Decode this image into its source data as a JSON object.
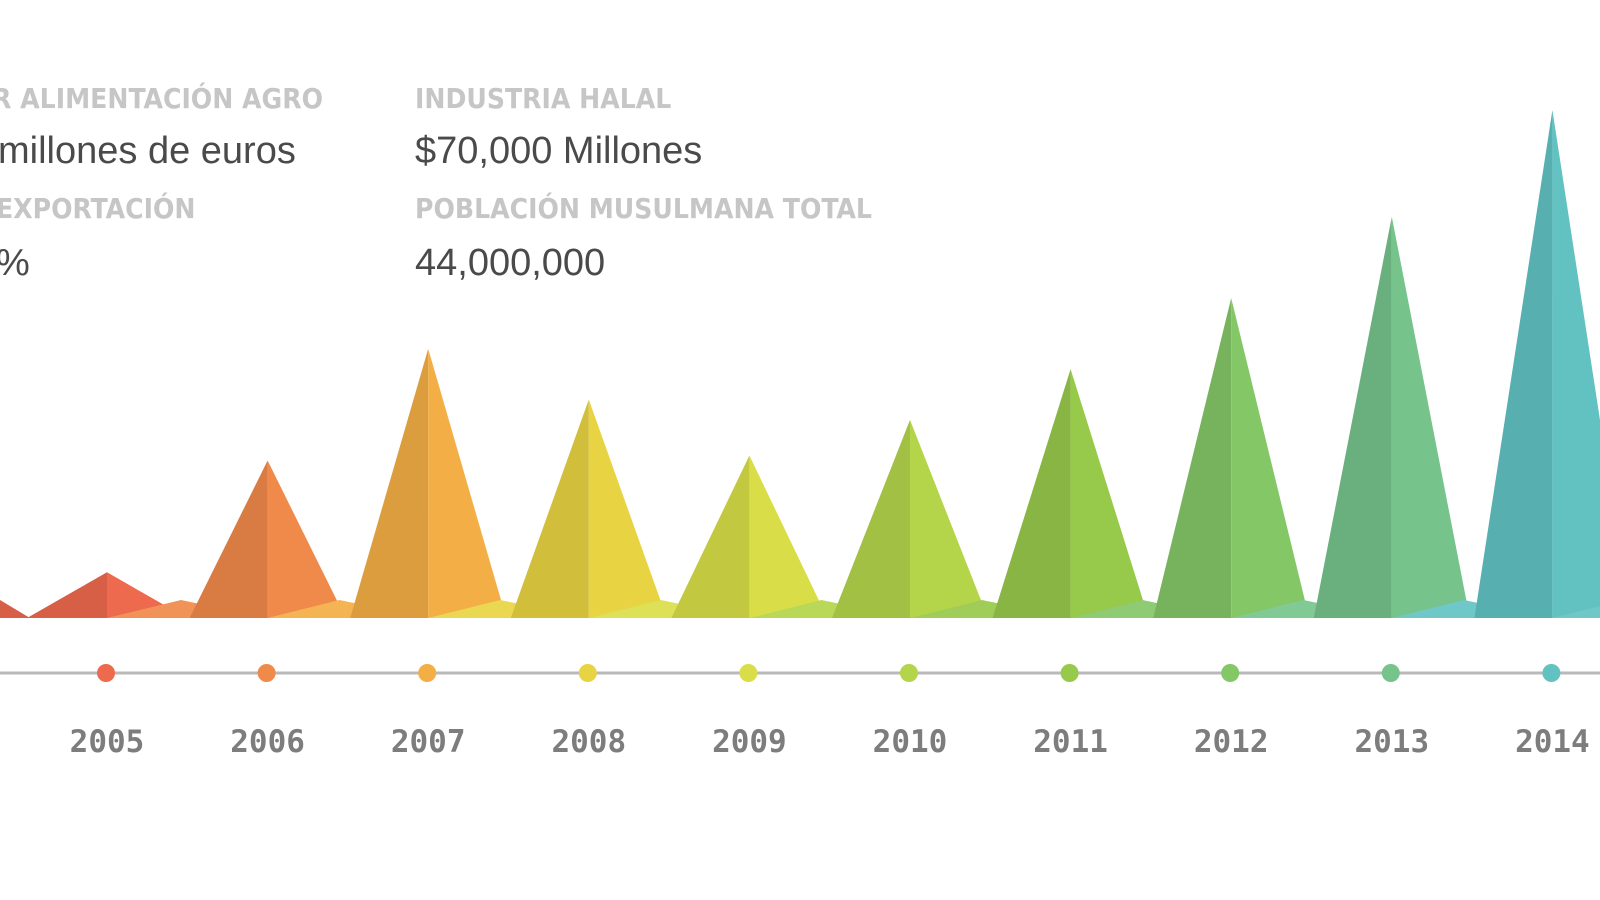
{
  "stats": {
    "sector_label": "R ALIMENTACIÓN AGRO",
    "sector_value": "millones de euros",
    "export_label": "EXPORTACIÓN",
    "export_value": "%",
    "halal_label": "INDUSTRIA HALAL",
    "halal_value": "$70,000 Millones",
    "population_label": "POBLACIÓN MUSULMANA TOTAL",
    "population_value": "44,000,000"
  },
  "chart_data": {
    "type": "area",
    "style": "triangular peaks with timeline",
    "categories": [
      "2005",
      "2006",
      "2007",
      "2008",
      "2009",
      "2010",
      "2011",
      "2012",
      "2013",
      "2014"
    ],
    "values": [
      0.09,
      0.31,
      0.53,
      0.43,
      0.32,
      0.39,
      0.49,
      0.63,
      0.79,
      1.0
    ],
    "value_scale": "relative (no numeric axis shown)",
    "colors": [
      "#ee6a4e",
      "#f08a4a",
      "#f3ae45",
      "#e8d443",
      "#d9de48",
      "#b4d54a",
      "#97c94a",
      "#84c766",
      "#76c48c",
      "#62c2c2"
    ],
    "baseline_line_color": "#b9b9b9",
    "grid": false,
    "legend": "none"
  }
}
